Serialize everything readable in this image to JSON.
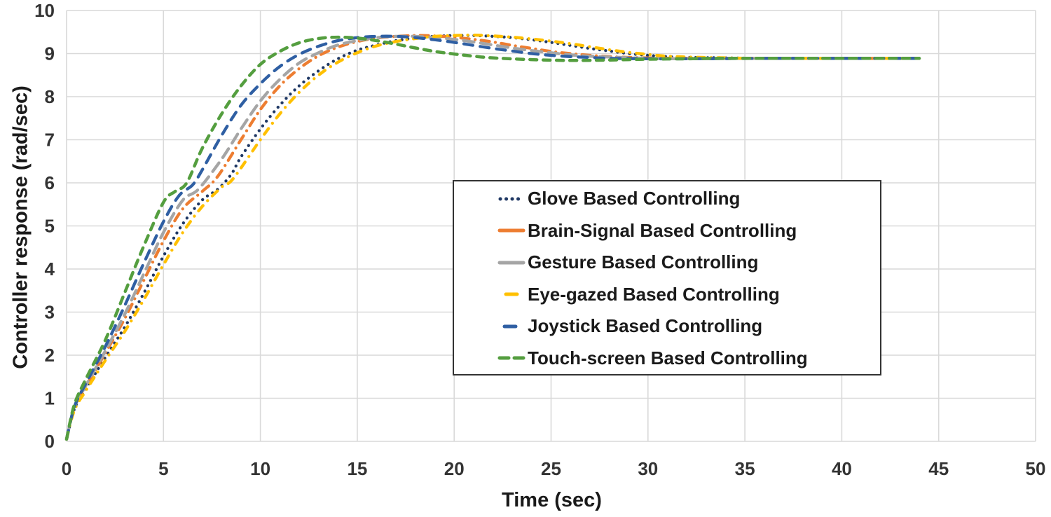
{
  "chart_data": {
    "type": "line",
    "title": "",
    "xlabel": "Time (sec)",
    "ylabel": "Controller response (rad/sec)",
    "xlim": [
      0,
      50
    ],
    "ylim": [
      0,
      10
    ],
    "x_ticks": [
      0,
      5,
      10,
      15,
      20,
      25,
      30,
      35,
      40,
      45,
      50
    ],
    "y_ticks": [
      0,
      1,
      2,
      3,
      4,
      5,
      6,
      7,
      8,
      9,
      10
    ],
    "grid": true,
    "legend_position": "center-right",
    "steady_state_value": 8.9,
    "series": [
      {
        "name": "Glove Based Controlling",
        "color": "#1F3864",
        "style": "dotted",
        "points": [
          [
            0,
            0.05
          ],
          [
            0.4,
            0.75
          ],
          [
            1,
            1.22
          ],
          [
            2,
            1.95
          ],
          [
            3,
            2.65
          ],
          [
            4,
            3.45
          ],
          [
            5,
            4.3
          ],
          [
            6,
            5.05
          ],
          [
            7,
            5.6
          ],
          [
            7.8,
            5.85
          ],
          [
            8.5,
            6.2
          ],
          [
            9,
            6.6
          ],
          [
            10,
            7.25
          ],
          [
            11,
            7.8
          ],
          [
            12,
            8.25
          ],
          [
            13,
            8.6
          ],
          [
            14,
            8.88
          ],
          [
            15,
            9.08
          ],
          [
            16,
            9.2
          ],
          [
            17,
            9.3
          ],
          [
            18,
            9.36
          ],
          [
            19,
            9.4
          ],
          [
            20,
            9.42
          ],
          [
            21,
            9.42
          ],
          [
            22,
            9.4
          ],
          [
            23,
            9.37
          ],
          [
            24,
            9.32
          ],
          [
            25,
            9.26
          ],
          [
            26,
            9.19
          ],
          [
            27,
            9.12
          ],
          [
            28,
            9.06
          ],
          [
            29,
            9.0
          ],
          [
            30,
            8.96
          ],
          [
            31,
            8.93
          ],
          [
            32,
            8.91
          ],
          [
            34,
            8.9
          ],
          [
            36,
            8.89
          ],
          [
            40,
            8.89
          ],
          [
            44,
            8.89
          ]
        ]
      },
      {
        "name": "Brain-Signal Based Controlling",
        "color": "#ED7D31",
        "style": "dash-dot",
        "points": [
          [
            0,
            0.05
          ],
          [
            0.4,
            0.78
          ],
          [
            1,
            1.28
          ],
          [
            2,
            2.05
          ],
          [
            3,
            2.85
          ],
          [
            4,
            3.75
          ],
          [
            5,
            4.65
          ],
          [
            6,
            5.4
          ],
          [
            7,
            5.8
          ],
          [
            7.8,
            6.15
          ],
          [
            9,
            7.0
          ],
          [
            10,
            7.7
          ],
          [
            11,
            8.25
          ],
          [
            12,
            8.65
          ],
          [
            13,
            8.95
          ],
          [
            14,
            9.15
          ],
          [
            15,
            9.28
          ],
          [
            16,
            9.36
          ],
          [
            17,
            9.4
          ],
          [
            18,
            9.42
          ],
          [
            19,
            9.41
          ],
          [
            20,
            9.38
          ],
          [
            21,
            9.33
          ],
          [
            22,
            9.27
          ],
          [
            23,
            9.19
          ],
          [
            24,
            9.12
          ],
          [
            25,
            9.05
          ],
          [
            26,
            9.0
          ],
          [
            27,
            8.96
          ],
          [
            28,
            8.93
          ],
          [
            29,
            8.91
          ],
          [
            30,
            8.9
          ],
          [
            32,
            8.89
          ],
          [
            36,
            8.89
          ],
          [
            40,
            8.89
          ],
          [
            44,
            8.89
          ]
        ]
      },
      {
        "name": "Gesture Based Controlling",
        "color": "#A5A5A5",
        "style": "dash",
        "points": [
          [
            0,
            0.05
          ],
          [
            0.4,
            0.78
          ],
          [
            1,
            1.3
          ],
          [
            2,
            2.1
          ],
          [
            3,
            2.95
          ],
          [
            4,
            3.9
          ],
          [
            5,
            4.85
          ],
          [
            6,
            5.6
          ],
          [
            6.8,
            5.85
          ],
          [
            8,
            6.55
          ],
          [
            9,
            7.25
          ],
          [
            10,
            7.9
          ],
          [
            11,
            8.4
          ],
          [
            12,
            8.78
          ],
          [
            13,
            9.02
          ],
          [
            14,
            9.2
          ],
          [
            15,
            9.3
          ],
          [
            16,
            9.37
          ],
          [
            17,
            9.4
          ],
          [
            18,
            9.4
          ],
          [
            19,
            9.37
          ],
          [
            20,
            9.33
          ],
          [
            21,
            9.27
          ],
          [
            22,
            9.2
          ],
          [
            23,
            9.13
          ],
          [
            24,
            9.07
          ],
          [
            25,
            9.02
          ],
          [
            26,
            8.97
          ],
          [
            27,
            8.94
          ],
          [
            28,
            8.92
          ],
          [
            30,
            8.89
          ],
          [
            32,
            8.88
          ],
          [
            36,
            8.89
          ],
          [
            40,
            8.89
          ],
          [
            44,
            8.89
          ]
        ]
      },
      {
        "name": "Eye-gazed Based Controlling",
        "color": "#FFC000",
        "style": "dash-dot-short",
        "points": [
          [
            0,
            0.05
          ],
          [
            0.4,
            0.72
          ],
          [
            1,
            1.18
          ],
          [
            2,
            1.88
          ],
          [
            3,
            2.55
          ],
          [
            4,
            3.3
          ],
          [
            5,
            4.1
          ],
          [
            6,
            4.85
          ],
          [
            7,
            5.45
          ],
          [
            8,
            5.9
          ],
          [
            8.6,
            6.1
          ],
          [
            10,
            7.0
          ],
          [
            11,
            7.6
          ],
          [
            12,
            8.1
          ],
          [
            13,
            8.5
          ],
          [
            14,
            8.8
          ],
          [
            15,
            9.02
          ],
          [
            16,
            9.18
          ],
          [
            17,
            9.28
          ],
          [
            18,
            9.35
          ],
          [
            19,
            9.4
          ],
          [
            20,
            9.42
          ],
          [
            21,
            9.43
          ],
          [
            22,
            9.41
          ],
          [
            23,
            9.38
          ],
          [
            24,
            9.34
          ],
          [
            25,
            9.29
          ],
          [
            26,
            9.23
          ],
          [
            27,
            9.16
          ],
          [
            28,
            9.09
          ],
          [
            29,
            9.03
          ],
          [
            30,
            8.98
          ],
          [
            31,
            8.94
          ],
          [
            32,
            8.92
          ],
          [
            34,
            8.9
          ],
          [
            36,
            8.89
          ],
          [
            40,
            8.89
          ],
          [
            44,
            8.89
          ]
        ]
      },
      {
        "name": "Joystick Based Controlling",
        "color": "#2F5FA3",
        "style": "long-dash",
        "points": [
          [
            0,
            0.05
          ],
          [
            0.4,
            0.8
          ],
          [
            1,
            1.35
          ],
          [
            2,
            2.2
          ],
          [
            3,
            3.15
          ],
          [
            4,
            4.15
          ],
          [
            5,
            5.1
          ],
          [
            5.8,
            5.7
          ],
          [
            6.5,
            5.95
          ],
          [
            7,
            6.3
          ],
          [
            8,
            7.1
          ],
          [
            9,
            7.8
          ],
          [
            10,
            8.3
          ],
          [
            11,
            8.7
          ],
          [
            12,
            8.98
          ],
          [
            13,
            9.17
          ],
          [
            14,
            9.3
          ],
          [
            15,
            9.37
          ],
          [
            16,
            9.4
          ],
          [
            17,
            9.4
          ],
          [
            18,
            9.37
          ],
          [
            19,
            9.32
          ],
          [
            20,
            9.26
          ],
          [
            21,
            9.19
          ],
          [
            22,
            9.12
          ],
          [
            23,
            9.06
          ],
          [
            24,
            9.0
          ],
          [
            25,
            8.96
          ],
          [
            26,
            8.93
          ],
          [
            27,
            8.91
          ],
          [
            28,
            8.89
          ],
          [
            30,
            8.88
          ],
          [
            32,
            8.88
          ],
          [
            36,
            8.89
          ],
          [
            40,
            8.89
          ],
          [
            44,
            8.89
          ]
        ]
      },
      {
        "name": "Touch-screen Based Controlling",
        "color": "#549E3F",
        "style": "medium-dash",
        "points": [
          [
            0,
            0.05
          ],
          [
            0.4,
            0.85
          ],
          [
            1,
            1.45
          ],
          [
            2,
            2.35
          ],
          [
            3,
            3.45
          ],
          [
            4,
            4.55
          ],
          [
            5,
            5.55
          ],
          [
            5.6,
            5.8
          ],
          [
            6.2,
            6.0
          ],
          [
            7,
            6.8
          ],
          [
            8,
            7.6
          ],
          [
            9,
            8.25
          ],
          [
            10,
            8.75
          ],
          [
            11,
            9.05
          ],
          [
            12,
            9.25
          ],
          [
            13,
            9.35
          ],
          [
            14,
            9.38
          ],
          [
            15,
            9.36
          ],
          [
            16,
            9.3
          ],
          [
            17,
            9.22
          ],
          [
            18,
            9.13
          ],
          [
            19,
            9.05
          ],
          [
            20,
            8.99
          ],
          [
            21,
            8.94
          ],
          [
            22,
            8.9
          ],
          [
            24,
            8.86
          ],
          [
            26,
            8.84
          ],
          [
            28,
            8.85
          ],
          [
            30,
            8.87
          ],
          [
            32,
            8.88
          ],
          [
            34,
            8.89
          ],
          [
            40,
            8.89
          ],
          [
            44,
            8.89
          ]
        ]
      }
    ]
  },
  "style": {
    "grid_color": "#D9D9D9",
    "tick_color": "#333333",
    "text_color": "#1a1a1a",
    "legend_border_color": "#333333",
    "background": "#ffffff"
  }
}
